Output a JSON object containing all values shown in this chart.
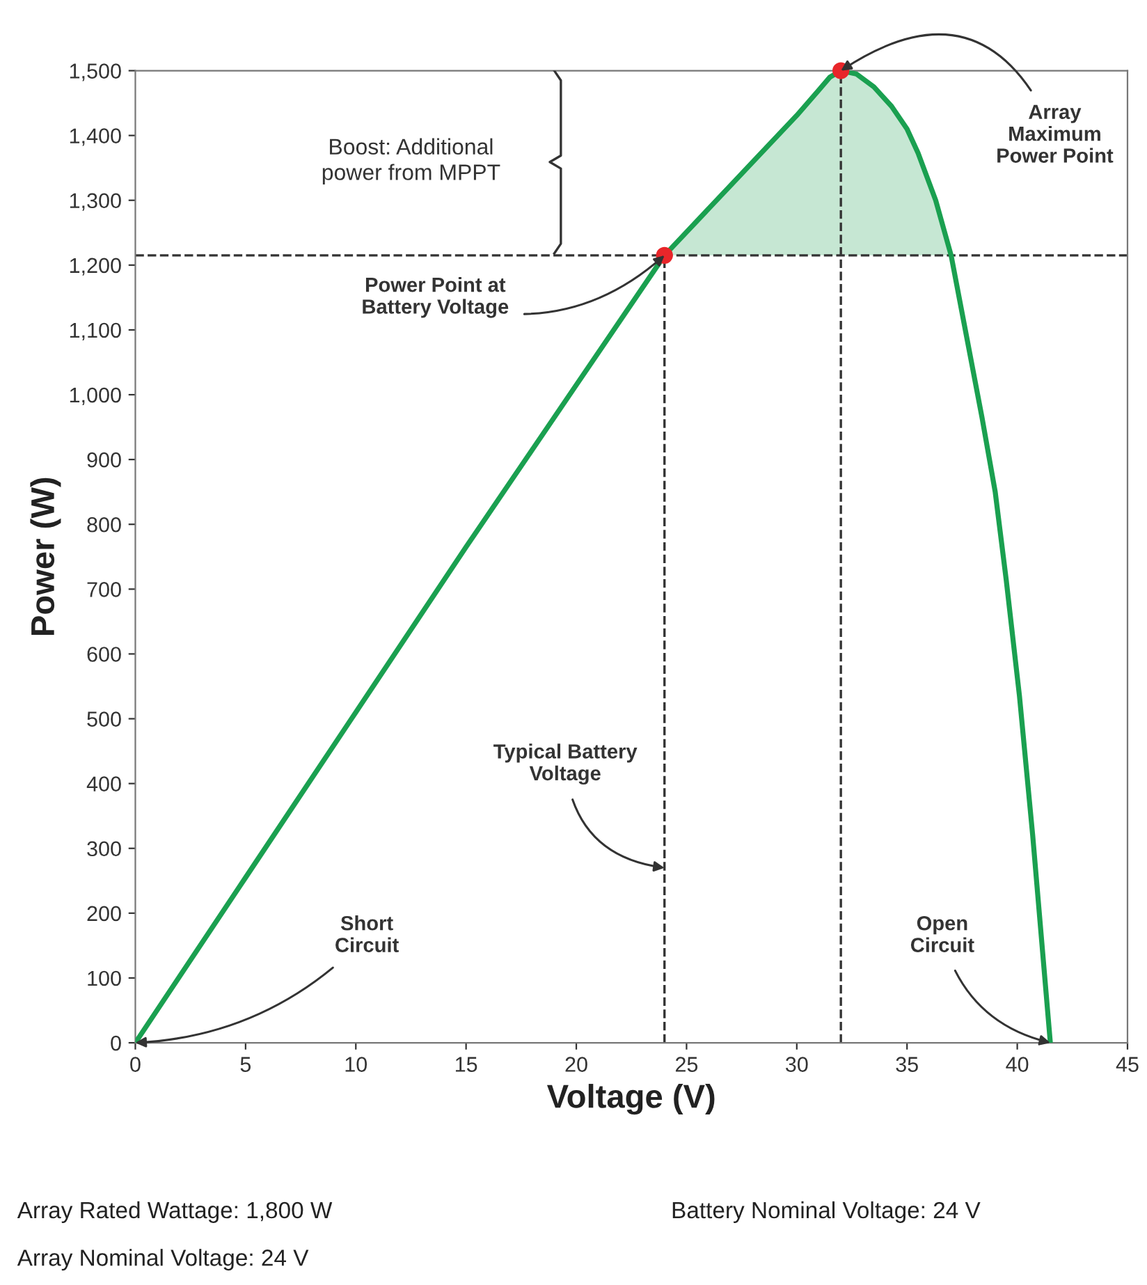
{
  "chart_data": {
    "type": "line",
    "xlabel": "Voltage (V)",
    "ylabel": "Power (W)",
    "xlim": [
      0,
      45
    ],
    "xticks": [
      0,
      5,
      10,
      15,
      20,
      25,
      30,
      35,
      40,
      45
    ],
    "ylim": [
      0,
      1500
    ],
    "yticks": [
      0,
      100,
      200,
      300,
      400,
      500,
      600,
      700,
      800,
      900,
      {
        "value": 1000,
        "label": "1,000"
      },
      {
        "value": 1100,
        "label": "1,100"
      },
      {
        "value": 1200,
        "label": "1,200"
      },
      {
        "value": 1300,
        "label": "1,300"
      },
      {
        "value": 1400,
        "label": "1,400"
      },
      {
        "value": 1500,
        "label": "1,500"
      }
    ],
    "grid": false,
    "legend": false,
    "series": [
      {
        "color": "#1aa050",
        "x": [
          0,
          5,
          10,
          15,
          20,
          24,
          26,
          28,
          30,
          31,
          31.5,
          32,
          32.7,
          33.5,
          34.3,
          35,
          35.5,
          36.3,
          37,
          37.7,
          38.4,
          39,
          39.5,
          40.1,
          40.7,
          41.5
        ],
        "values": [
          0,
          255,
          510,
          765,
          1015,
          1215,
          1287,
          1359,
          1431,
          1470,
          1490,
          1500,
          1495,
          1475,
          1445,
          1410,
          1373,
          1300,
          1215,
          1090,
          965,
          850,
          714,
          535,
          320,
          0
        ],
        "lower": [
          null,
          null,
          null,
          null,
          null,
          1215,
          1215,
          1215,
          1215,
          1215,
          1215,
          1215,
          1215,
          1215,
          1215,
          1215,
          1215,
          1215,
          1215,
          null,
          null,
          null,
          null,
          null,
          null,
          null
        ],
        "upper": [
          null,
          null,
          null,
          null,
          null,
          1215,
          1287,
          1359,
          1431,
          1470,
          1490,
          1500,
          1495,
          1475,
          1445,
          1410,
          1373,
          1300,
          1215,
          null,
          null,
          null,
          null,
          null,
          null,
          null
        ]
      },
      {
        "type": "scatter",
        "color": "#e8262a",
        "x": [
          24,
          32
        ],
        "values": [
          1215,
          1500
        ]
      }
    ],
    "ref_lines": [
      {
        "axis": "y",
        "value": 1215,
        "line_style": "dashed",
        "color": "#333333"
      },
      {
        "axis": "x",
        "value": 24,
        "line_style": "dashed",
        "color": "#333333"
      },
      {
        "axis": "x",
        "value": 32,
        "line_style": "dashed",
        "color": "#333333"
      }
    ],
    "annotations": [
      {
        "text": "Array\nMaximum\nPower Point",
        "x": 32,
        "y": 1500
      },
      {
        "text": "Power Point at\nBattery Voltage",
        "x": 24,
        "y": 1215
      },
      {
        "text": "Typical Battery\nVoltage",
        "x": 24,
        "y": 270
      },
      {
        "text": "Short\nCircuit",
        "x": 0,
        "y": 0
      },
      {
        "text": "Open\nCircuit",
        "x": 41.5,
        "y": 0
      },
      "Boost: Additional\npower from MPPT",
      "Array Rated Wattage: 1,800 W",
      "Battery Nominal Voltage: 24 V",
      "Array Nominal Voltage: 24 V"
    ]
  }
}
